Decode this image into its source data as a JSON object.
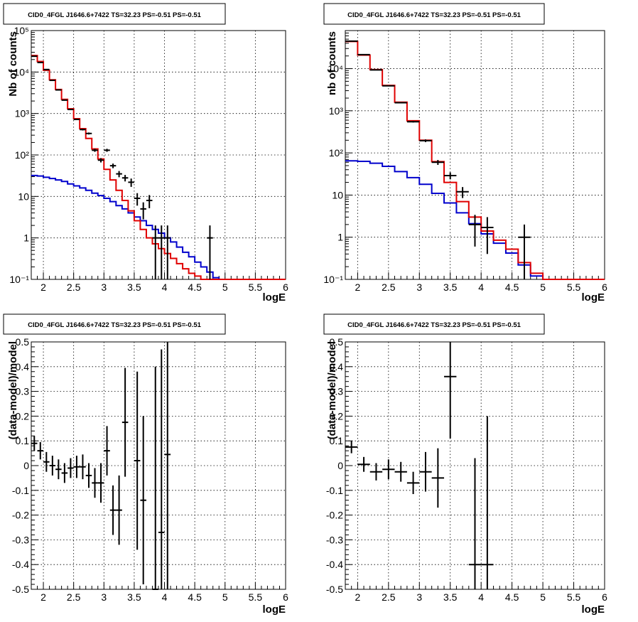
{
  "pads": [
    {
      "title": "CID0_4FGL J1646.6+7422 TS=32.23 PS=-0.51 PS=-0.51",
      "xlabel": "logE",
      "ylabel": "Nb of counts",
      "xtick_labels": [
        "2",
        "2.5",
        "3",
        "3.5",
        "4",
        "4.5",
        "5",
        "5.5",
        "6"
      ],
      "ytick_labels": [
        "10⁻¹",
        "1",
        "10",
        "10²",
        "10³",
        "10⁴",
        "10⁵"
      ]
    },
    {
      "title": "CID0_4FGL J1646.6+7422 TS=32.23 PS=-0.51 PS=-0.51",
      "xlabel": "logE",
      "ylabel": "nb of counts",
      "xtick_labels": [
        "2",
        "2.5",
        "3",
        "3.5",
        "4",
        "4.5",
        "5",
        "5.5",
        "6"
      ],
      "ytick_labels": [
        "10⁻¹",
        "1",
        "10",
        "10²",
        "10³",
        "10⁴"
      ]
    },
    {
      "title": "CID0_4FGL J1646.6+7422 TS=32.23 PS=-0.51 PS=-0.51",
      "xlabel": "logE",
      "ylabel": "(data-model)/model",
      "xtick_labels": [
        "2",
        "2.5",
        "3",
        "3.5",
        "4",
        "4.5",
        "5",
        "5.5",
        "6"
      ],
      "ytick_labels": [
        "-0.5",
        "-0.4",
        "-0.3",
        "-0.2",
        "-0.1",
        "0",
        "0.1",
        "0.2",
        "0.3",
        "0.4",
        "0.5"
      ]
    },
    {
      "title": "CID0_4FGL J1646.6+7422 TS=32.23 PS=-0.51 PS=-0.51",
      "xlabel": "logE",
      "ylabel": "(data-model)/model",
      "xtick_labels": [
        "2",
        "2.5",
        "3",
        "3.5",
        "4",
        "4.5",
        "5",
        "5.5",
        "6"
      ],
      "ytick_labels": [
        "-0.5",
        "-0.4",
        "-0.3",
        "-0.2",
        "-0.1",
        "0",
        "0.1",
        "0.2",
        "0.3",
        "0.4",
        "0.5"
      ]
    }
  ],
  "colors": {
    "data": "#000000",
    "total_model": "#e00000",
    "component_model": "#0000cc",
    "grid": "#000000"
  },
  "chart_data": [
    {
      "type": "line",
      "x_scale": "linear",
      "y_scale": "log",
      "xlim": [
        1.8,
        6.0
      ],
      "ylim": [
        0.1,
        100000
      ],
      "grid": true,
      "total_model": {
        "bin_edges": [
          1.8,
          1.9,
          2.0,
          2.1,
          2.2,
          2.3,
          2.4,
          2.5,
          2.6,
          2.7,
          2.8,
          2.9,
          3.0,
          3.1,
          3.2,
          3.3,
          3.4,
          3.5,
          3.6,
          3.7,
          3.8,
          3.9,
          4.0,
          4.1,
          4.2,
          4.3,
          4.4,
          4.5,
          4.6,
          4.7,
          4.8,
          4.9,
          5.0,
          5.1,
          5.2,
          5.3,
          5.4,
          5.5,
          5.6,
          5.7,
          5.8,
          5.9,
          6.0
        ],
        "values": [
          25000,
          18000,
          11000,
          6500,
          3800,
          2200,
          1300,
          750,
          430,
          250,
          140,
          80,
          45,
          25,
          14,
          8,
          4.5,
          2.6,
          1.6,
          1.0,
          0.72,
          0.55,
          0.42,
          0.32,
          0.24,
          0.18,
          0.14,
          0.12,
          0.1,
          0.1,
          0.1,
          0.1,
          0.1,
          0.1,
          0.1,
          0.1,
          0.1,
          0.1,
          0.1,
          0.1,
          0.1,
          0.1
        ]
      },
      "component_model": {
        "bin_edges": [
          1.8,
          1.9,
          2.0,
          2.1,
          2.2,
          2.3,
          2.4,
          2.5,
          2.6,
          2.7,
          2.8,
          2.9,
          3.0,
          3.1,
          3.2,
          3.3,
          3.4,
          3.5,
          3.6,
          3.7,
          3.8,
          3.9,
          4.0,
          4.1,
          4.2,
          4.3,
          4.4,
          4.5,
          4.6,
          4.7,
          4.8,
          4.9,
          5.0,
          5.1,
          5.2,
          5.3,
          5.4,
          5.5,
          5.6,
          5.7,
          5.8,
          5.9,
          6.0
        ],
        "values": [
          32,
          31,
          29,
          27,
          25,
          23,
          20,
          18,
          16,
          14,
          12,
          10.5,
          9,
          7.5,
          6,
          5,
          4,
          3.2,
          2.6,
          2.0,
          1.6,
          1.3,
          1.0,
          0.8,
          0.6,
          0.45,
          0.35,
          0.26,
          0.2,
          0.15,
          0.11,
          0.1,
          0.1,
          0.1,
          0.1,
          0.1,
          0.1,
          0.1,
          0.1,
          0.1,
          0.1,
          0.1
        ]
      },
      "data_points": [
        {
          "x": 1.85,
          "y": 24000,
          "yerr": 160
        },
        {
          "x": 1.95,
          "y": 17000,
          "yerr": 130
        },
        {
          "x": 2.05,
          "y": 11500,
          "yerr": 107
        },
        {
          "x": 2.15,
          "y": 6300,
          "yerr": 79
        },
        {
          "x": 2.25,
          "y": 3700,
          "yerr": 61
        },
        {
          "x": 2.35,
          "y": 2100,
          "yerr": 46
        },
        {
          "x": 2.45,
          "y": 1250,
          "yerr": 35
        },
        {
          "x": 2.55,
          "y": 720,
          "yerr": 27
        },
        {
          "x": 2.65,
          "y": 410,
          "yerr": 20
        },
        {
          "x": 2.75,
          "y": 330,
          "yerr": 18
        },
        {
          "x": 2.85,
          "y": 130,
          "yerr": 11
        },
        {
          "x": 2.95,
          "y": 75,
          "yerr": 9
        },
        {
          "x": 3.05,
          "y": 130,
          "yerr": 11
        },
        {
          "x": 3.15,
          "y": 55,
          "yerr": 7
        },
        {
          "x": 3.25,
          "y": 35,
          "yerr": 6
        },
        {
          "x": 3.35,
          "y": 28,
          "yerr": 5
        },
        {
          "x": 3.45,
          "y": 22,
          "yerr": 5
        },
        {
          "x": 3.55,
          "y": 9,
          "yerr": 3
        },
        {
          "x": 3.65,
          "y": 5,
          "yerr": 2.2
        },
        {
          "x": 3.75,
          "y": 8,
          "yerr": 2.8
        },
        {
          "x": 3.85,
          "y": 1,
          "yerr": 1
        },
        {
          "x": 3.95,
          "y": 1,
          "yerr": 1
        },
        {
          "x": 4.05,
          "y": 1,
          "yerr": 1
        },
        {
          "x": 4.75,
          "y": 1,
          "yerr": 1
        }
      ]
    },
    {
      "type": "line",
      "x_scale": "linear",
      "y_scale": "log",
      "xlim": [
        1.8,
        6.0
      ],
      "ylim": [
        0.1,
        80000
      ],
      "grid": true,
      "total_model": {
        "bin_edges": [
          1.8,
          2.0,
          2.2,
          2.4,
          2.6,
          2.8,
          3.0,
          3.2,
          3.4,
          3.6,
          3.8,
          4.0,
          4.2,
          4.4,
          4.6,
          4.8,
          5.0,
          5.2,
          5.4,
          5.6,
          5.8,
          6.0
        ],
        "values": [
          44000,
          21000,
          9500,
          4000,
          1600,
          580,
          200,
          62,
          20,
          7,
          3,
          1.4,
          0.85,
          0.52,
          0.25,
          0.14,
          0.1,
          0.1,
          0.1,
          0.1,
          0.1
        ]
      },
      "component_model": {
        "bin_edges": [
          1.8,
          2.0,
          2.2,
          2.4,
          2.6,
          2.8,
          3.0,
          3.2,
          3.4,
          3.6,
          3.8,
          4.0,
          4.2,
          4.4,
          4.6,
          4.8,
          5.0,
          5.2,
          5.4,
          5.6,
          5.8,
          6.0
        ],
        "values": [
          65,
          63,
          57,
          48,
          36,
          26,
          18,
          11,
          6.5,
          3.8,
          2.1,
          1.2,
          0.72,
          0.42,
          0.22,
          0.12,
          0.1,
          0.1,
          0.1,
          0.1,
          0.1
        ]
      },
      "data_points": [
        {
          "x": 1.9,
          "y": 45000,
          "yerr": 210
        },
        {
          "x": 2.1,
          "y": 21500,
          "yerr": 147
        },
        {
          "x": 2.3,
          "y": 9300,
          "yerr": 96
        },
        {
          "x": 2.5,
          "y": 3900,
          "yerr": 62
        },
        {
          "x": 2.7,
          "y": 1550,
          "yerr": 39
        },
        {
          "x": 2.9,
          "y": 550,
          "yerr": 23
        },
        {
          "x": 3.1,
          "y": 195,
          "yerr": 14
        },
        {
          "x": 3.3,
          "y": 60,
          "yerr": 8
        },
        {
          "x": 3.5,
          "y": 29,
          "yerr": 5.4
        },
        {
          "x": 3.7,
          "y": 12,
          "yerr": 3.5
        },
        {
          "x": 3.9,
          "y": 2,
          "yerr": 1.4
        },
        {
          "x": 4.1,
          "y": 1.7,
          "yerr": 1.3
        },
        {
          "x": 4.7,
          "y": 1,
          "yerr": 1
        }
      ]
    },
    {
      "type": "scatter",
      "xlim": [
        1.8,
        6.0
      ],
      "ylim": [
        -0.5,
        0.5
      ],
      "grid": true,
      "xerr": 0.05,
      "data_points": [
        {
          "x": 1.85,
          "y": 0.09,
          "yerr": 0.03
        },
        {
          "x": 1.95,
          "y": 0.06,
          "yerr": 0.035
        },
        {
          "x": 2.05,
          "y": 0.015,
          "yerr": 0.04
        },
        {
          "x": 2.15,
          "y": 0.0,
          "yerr": 0.04
        },
        {
          "x": 2.25,
          "y": -0.015,
          "yerr": 0.04
        },
        {
          "x": 2.35,
          "y": -0.03,
          "yerr": 0.04
        },
        {
          "x": 2.45,
          "y": -0.01,
          "yerr": 0.04
        },
        {
          "x": 2.55,
          "y": -0.005,
          "yerr": 0.045
        },
        {
          "x": 2.65,
          "y": -0.005,
          "yerr": 0.05
        },
        {
          "x": 2.75,
          "y": -0.04,
          "yerr": 0.05
        },
        {
          "x": 2.85,
          "y": -0.07,
          "yerr": 0.06
        },
        {
          "x": 2.95,
          "y": -0.07,
          "yerr": 0.08
        },
        {
          "x": 3.05,
          "y": 0.06,
          "yerr": 0.1
        },
        {
          "x": 3.15,
          "y": -0.18,
          "yerr": 0.1
        },
        {
          "x": 3.25,
          "y": -0.18,
          "yerr": 0.14
        },
        {
          "x": 3.35,
          "y": 0.175,
          "yerr": 0.22
        },
        {
          "x": 3.55,
          "y": 0.02,
          "yerr": 0.36
        },
        {
          "x": 3.65,
          "y": -0.14,
          "yerr": 0.34
        },
        {
          "x": 3.85,
          "y": -0.5,
          "yerr": 0.9
        },
        {
          "x": 3.95,
          "y": -0.27,
          "yerr": 0.74
        },
        {
          "x": 4.05,
          "y": 0.045,
          "yerr": 0.55
        }
      ]
    },
    {
      "type": "scatter",
      "xlim": [
        1.8,
        6.0
      ],
      "ylim": [
        -0.5,
        0.5
      ],
      "grid": true,
      "xerr": 0.1,
      "data_points": [
        {
          "x": 1.9,
          "y": 0.075,
          "yerr": 0.025
        },
        {
          "x": 2.1,
          "y": 0.005,
          "yerr": 0.03
        },
        {
          "x": 2.3,
          "y": -0.025,
          "yerr": 0.035
        },
        {
          "x": 2.5,
          "y": -0.015,
          "yerr": 0.04
        },
        {
          "x": 2.7,
          "y": -0.025,
          "yerr": 0.04
        },
        {
          "x": 2.9,
          "y": -0.07,
          "yerr": 0.045
        },
        {
          "x": 3.1,
          "y": -0.025,
          "yerr": 0.08
        },
        {
          "x": 3.3,
          "y": -0.05,
          "yerr": 0.12
        },
        {
          "x": 3.5,
          "y": 0.36,
          "yerr": 0.25
        },
        {
          "x": 3.9,
          "y": -0.4,
          "yerr": 0.43
        },
        {
          "x": 4.1,
          "y": -0.4,
          "yerr": 0.6
        }
      ]
    }
  ]
}
